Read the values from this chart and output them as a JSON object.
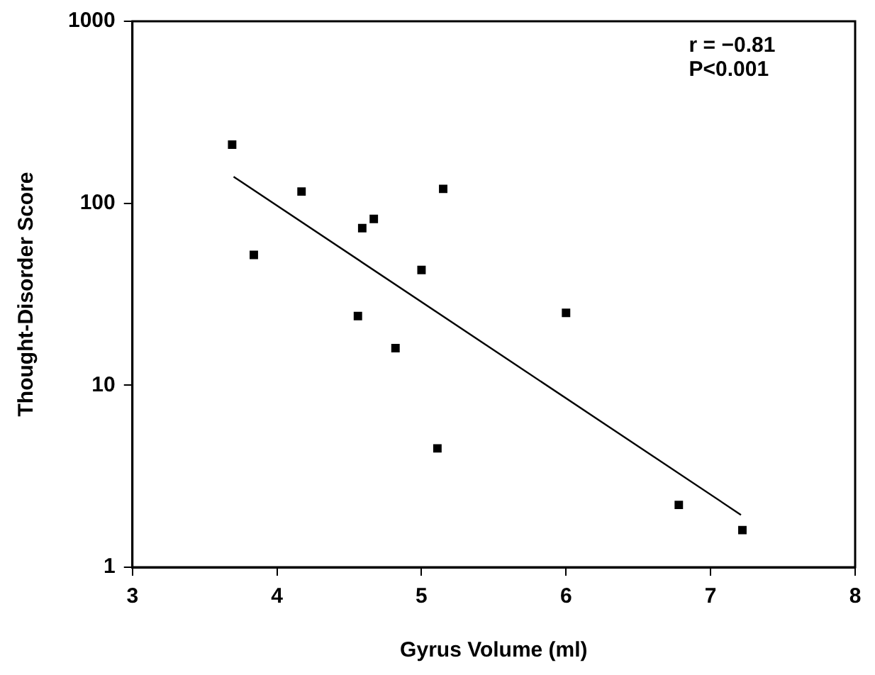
{
  "chart_data": {
    "type": "scatter",
    "xlabel": "Gyrus Volume (ml)",
    "ylabel": "Thought-Disorder Score",
    "annotations": [
      "r = −0.81",
      "P<0.001"
    ],
    "log": "y",
    "grid": false,
    "legend": false,
    "marker": "square",
    "xlim": [
      3,
      8
    ],
    "xticks": [
      3,
      4,
      5,
      6,
      7,
      8
    ],
    "ylim": [
      1,
      1000
    ],
    "yticks": [
      1,
      10,
      100,
      1000
    ],
    "series": [
      {
        "color": "#000000",
        "x": [
          3.69,
          3.84,
          4.17,
          4.56,
          4.59,
          4.67,
          4.82,
          5.0,
          5.11,
          5.15,
          6.0,
          6.78,
          7.22
        ],
        "values": [
          210,
          52,
          116,
          24,
          73,
          82,
          16,
          43,
          4.5,
          120,
          25,
          2.2,
          1.6
        ]
      },
      {
        "type": "line",
        "color": "#000000",
        "marker": "none",
        "line_style": "solid",
        "x": [
          3.7,
          7.21
        ],
        "values": [
          140,
          1.94
        ]
      }
    ]
  }
}
